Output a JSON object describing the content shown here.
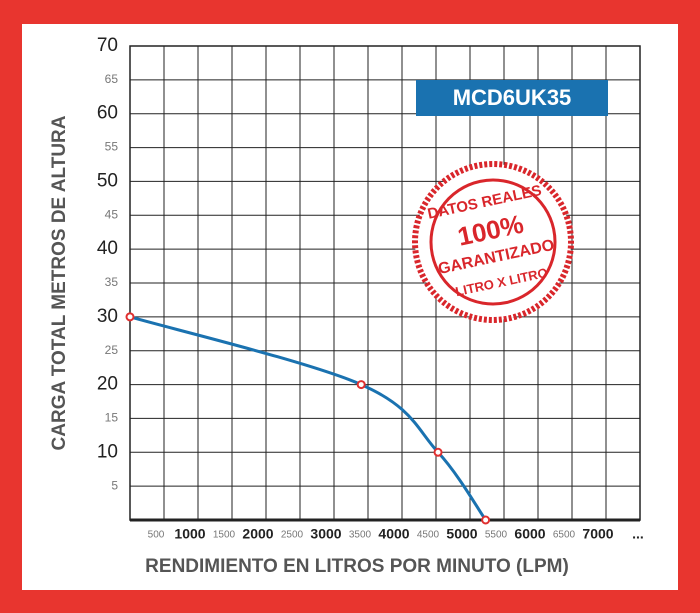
{
  "chart_data": {
    "type": "line",
    "x_label": "RENDIMIENTO EN LITROS POR MINUTO (LPM)",
    "y_label": "CARGA TOTAL METROS DE ALTURA",
    "model": "MCD6UK35",
    "stamp": {
      "top": "DATOS REALES",
      "middle": "100%",
      "lower": "GARANTIZADO",
      "bottom": "LITRO X LITRO"
    },
    "x_more": "...",
    "xlim": [
      0,
      7500
    ],
    "ylim": [
      0,
      70
    ],
    "xticks": [
      500,
      1000,
      1500,
      2000,
      2500,
      3000,
      3500,
      4000,
      4500,
      5000,
      5500,
      6000,
      6500,
      7000
    ],
    "yticks": [
      5,
      10,
      15,
      20,
      25,
      30,
      35,
      40,
      45,
      50,
      55,
      60,
      65,
      70
    ],
    "grid": true,
    "series": [
      {
        "name": "MCD6UK35",
        "color": "#1a72b0",
        "marker_color": "#e03030",
        "x": [
          0,
          3400,
          4530,
          5230
        ],
        "values": [
          30,
          20,
          10,
          0
        ]
      }
    ]
  }
}
